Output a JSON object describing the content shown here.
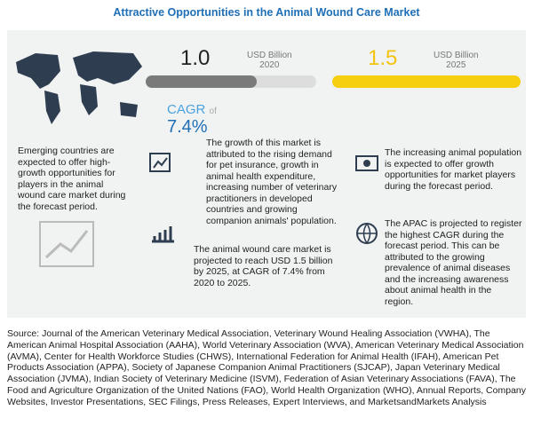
{
  "title": "Attractive Opportunities in the Animal Wound Care Market",
  "market_start": {
    "value": "1.0",
    "unit": "USD Billion",
    "year": "2020"
  },
  "market_end": {
    "value": "1.5",
    "unit": "USD Billion",
    "year": "2025"
  },
  "cagr": {
    "label": "CAGR",
    "of": "of",
    "value": "7.4%"
  },
  "left_text": "Emerging countries are expected to offer high-growth opportunities for players in the animal wound care market during the forecast period.",
  "points": [
    "The growth of this market is attributed to the rising demand for pet insurance, growth in animal health expenditure, increasing number of veterinary practitioners in developed countries and growing companion animals' population.",
    "The animal wound care market is projected to reach USD 1.5 billion by 2025, at CAGR of 7.4% from 2020 to 2025.",
    "The increasing animal population is expected to offer growth opportunities for market players during the forecast period.",
    "The APAC is projected to register the highest CAGR during the forecast period. This can be attributed to the growing prevalence of animal diseases and the increasing awareness about animal health in the region."
  ],
  "source": "Source: Journal of the American Veterinary Medical Association, Veterinary Wound Healing Association (VWHA), The American Animal Hospital Association (AAHA), World Veterinary Association (WVA), American Veterinary Medical Association (AVMA), Center for Health Workforce Studies (CHWS), International Federation for Animal Health (IFAH), American Pet Products Association (APPA), Society of Japanese Companion Animal Practitioners (SJCAP), Japan Veterinary Medical Association (JVMA), Indian Society of Veterinary Medicine (ISVM), Federation of Asian Veterinary Associations (FAVA), The Food and Agriculture Organization of the United Nations (FAO), World Health Organization (WHO), Annual Reports, Company Websites, Investor Presentations, SEC Filings, Press Releases, Expert Interviews, and MarketsandMarkets Analysis"
}
